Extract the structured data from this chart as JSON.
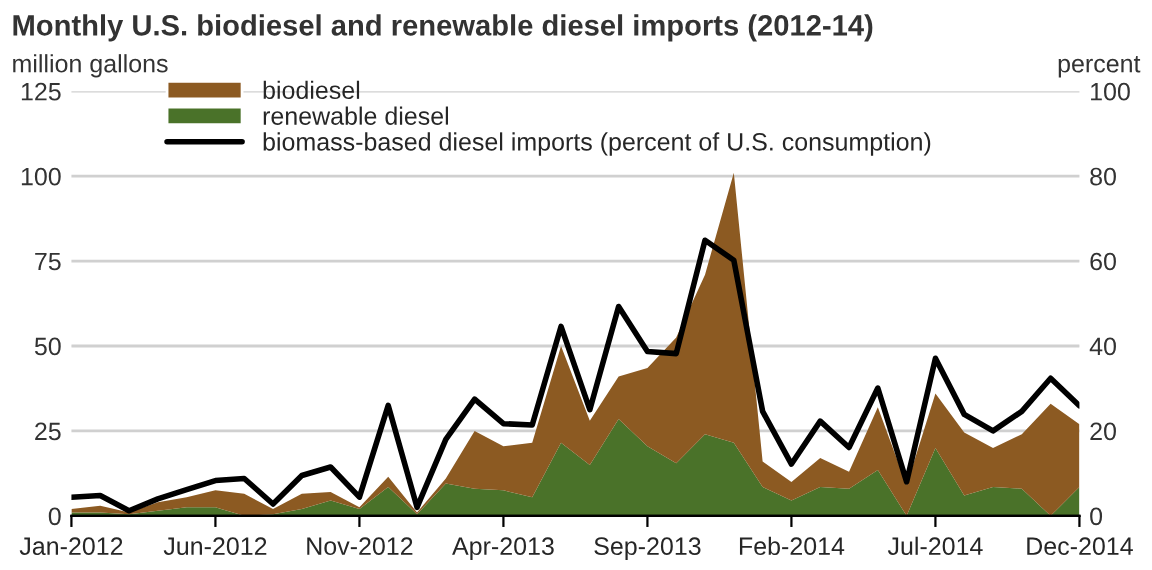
{
  "chart_data": {
    "type": "area",
    "title": "Monthly U.S. biodiesel and renewable diesel imports (2012-14)",
    "ylabel": "million gallons",
    "y2label": "percent",
    "categories": [
      "Jan-2012",
      null,
      null,
      null,
      null,
      "Jun-2012",
      null,
      null,
      null,
      null,
      "Nov-2012",
      null,
      null,
      null,
      null,
      "Apr-2013",
      null,
      null,
      null,
      null,
      "Sep-2013",
      null,
      null,
      null,
      null,
      "Feb-2014",
      null,
      null,
      null,
      null,
      "Jul-2014",
      null,
      null,
      null,
      null,
      "Dec-2014"
    ],
    "stacked": true,
    "series": [
      {
        "name": "renewable diesel",
        "color": "#4a7229",
        "values": [
          1,
          1,
          0.5,
          1.5,
          2.5,
          2.5,
          0,
          0.5,
          2,
          4.5,
          2,
          8.5,
          0.5,
          9.5,
          8,
          7.5,
          5.5,
          21.5,
          15,
          28.5,
          20.5,
          15.5,
          24,
          21.5,
          8.5,
          4.5,
          8.5,
          8,
          13.5,
          0,
          20,
          6,
          8.5,
          8,
          0,
          8.5
        ]
      },
      {
        "name": "biodiesel",
        "color": "#8c5a22",
        "values": [
          1,
          2,
          0.5,
          2.5,
          3,
          5,
          6.5,
          1.5,
          4.5,
          2.5,
          0.5,
          3,
          0.5,
          1.5,
          17,
          13,
          16,
          28.5,
          13,
          12.5,
          23,
          37,
          47,
          79.5,
          7.5,
          5.5,
          8.5,
          5,
          18.5,
          9,
          16,
          18.5,
          11.5,
          16,
          33,
          18.5
        ]
      },
      {
        "name": "biomass-based diesel imports (percent of U.S. consumption)",
        "type": "line",
        "axis": "y2",
        "color": "#000000",
        "values": [
          4.4,
          4.8,
          1.2,
          4,
          6.2,
          8.3,
          8.8,
          2.8,
          9.5,
          11.5,
          4.4,
          26,
          2,
          18,
          27.5,
          21.7,
          21.4,
          44.6,
          25,
          49.3,
          38.7,
          38.2,
          64.9,
          60.2,
          24.6,
          12.2,
          22.3,
          16.1,
          30.1,
          8,
          37.1,
          23.9,
          20,
          24.6,
          32.4,
          25.9
        ]
      }
    ],
    "ylim": [
      0,
      125
    ],
    "yticks": [
      0,
      25,
      50,
      75,
      100,
      125
    ],
    "y2lim": [
      0,
      100
    ],
    "y2ticks": [
      0,
      20,
      40,
      60,
      80,
      100
    ],
    "grid": "y",
    "legend": "top left",
    "marker": "none",
    "line_style": "solid"
  }
}
